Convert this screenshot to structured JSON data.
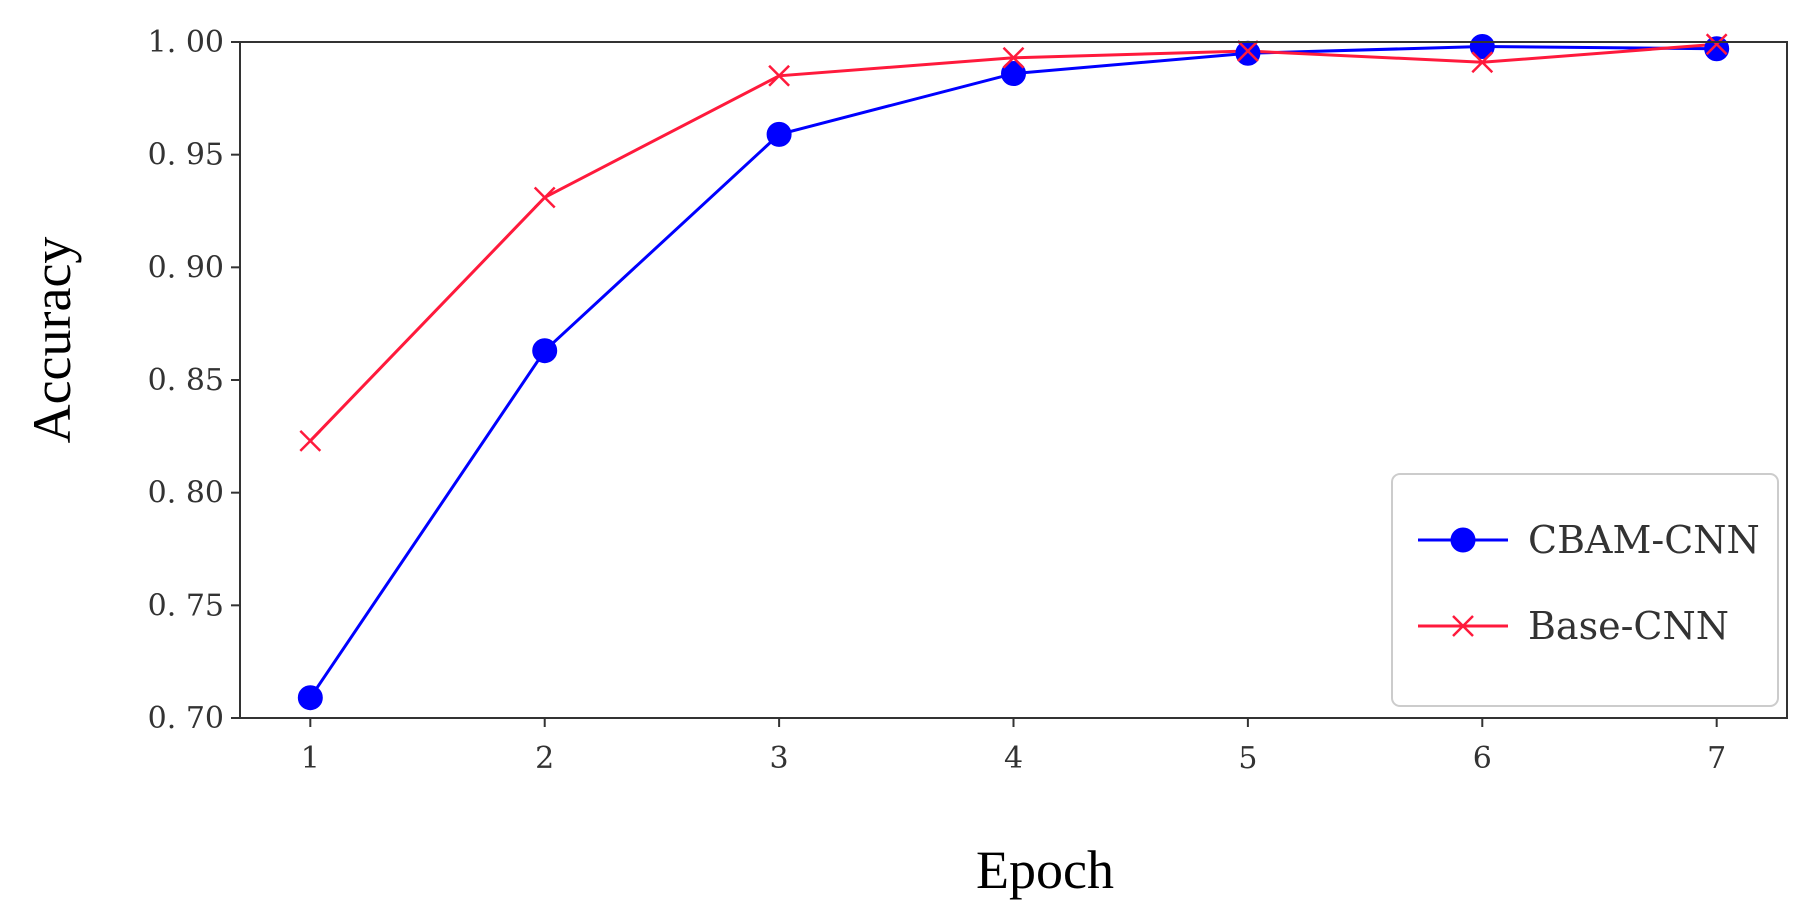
{
  "chart_data": {
    "type": "line",
    "title": "",
    "xlabel": "Epoch",
    "ylabel": "Accuracy",
    "x": [
      1,
      2,
      3,
      4,
      5,
      6,
      7
    ],
    "xlim": [
      0.7,
      7.3
    ],
    "ylim": [
      0.7,
      1.0
    ],
    "xticks": [
      1,
      2,
      3,
      4,
      5,
      6,
      7
    ],
    "xtick_labels": [
      "1",
      "2",
      "3",
      "4",
      "5",
      "6",
      "7"
    ],
    "yticks": [
      0.7,
      0.75,
      0.8,
      0.85,
      0.9,
      0.95,
      1.0
    ],
    "ytick_labels": [
      "0. 70",
      "0. 75",
      "0. 80",
      "0. 85",
      "0. 90",
      "0. 95",
      "1. 00"
    ],
    "grid": false,
    "legend": "bottom-right",
    "series": [
      {
        "name": "CBAM-CNN",
        "color": "#0000ff",
        "marker": "circle",
        "values": [
          0.709,
          0.863,
          0.959,
          0.986,
          0.995,
          0.998,
          0.997
        ]
      },
      {
        "name": "Base-CNN",
        "color": "#ff1a3c",
        "marker": "x",
        "values": [
          0.823,
          0.931,
          0.985,
          0.993,
          0.996,
          0.991,
          0.999
        ]
      }
    ]
  }
}
